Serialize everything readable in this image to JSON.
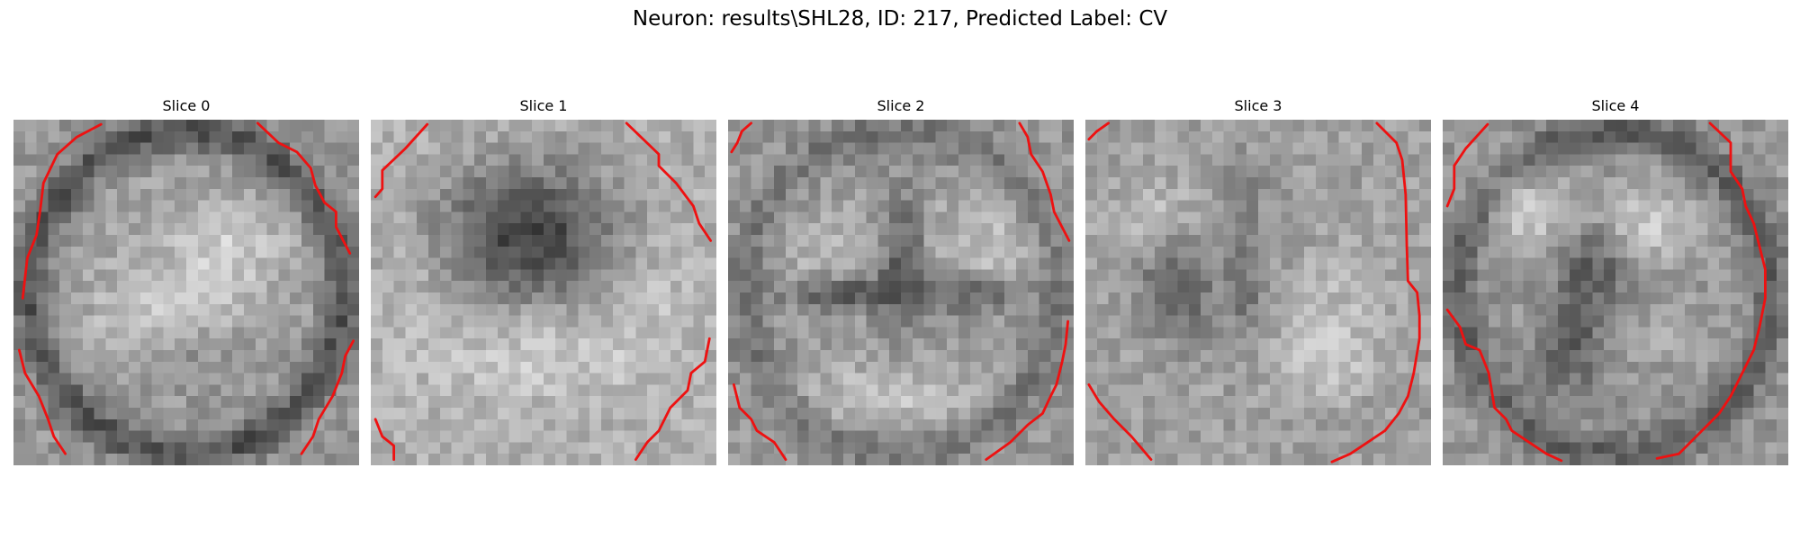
{
  "figure": {
    "title": "Neuron: results\\SHL28, ID: 217, Predicted Label: CV"
  },
  "contour_color": "#ee1111",
  "panels": [
    {
      "title": "Slice 0"
    },
    {
      "title": "Slice 1"
    },
    {
      "title": "Slice 2"
    },
    {
      "title": "Slice 3"
    },
    {
      "title": "Slice 4"
    }
  ]
}
